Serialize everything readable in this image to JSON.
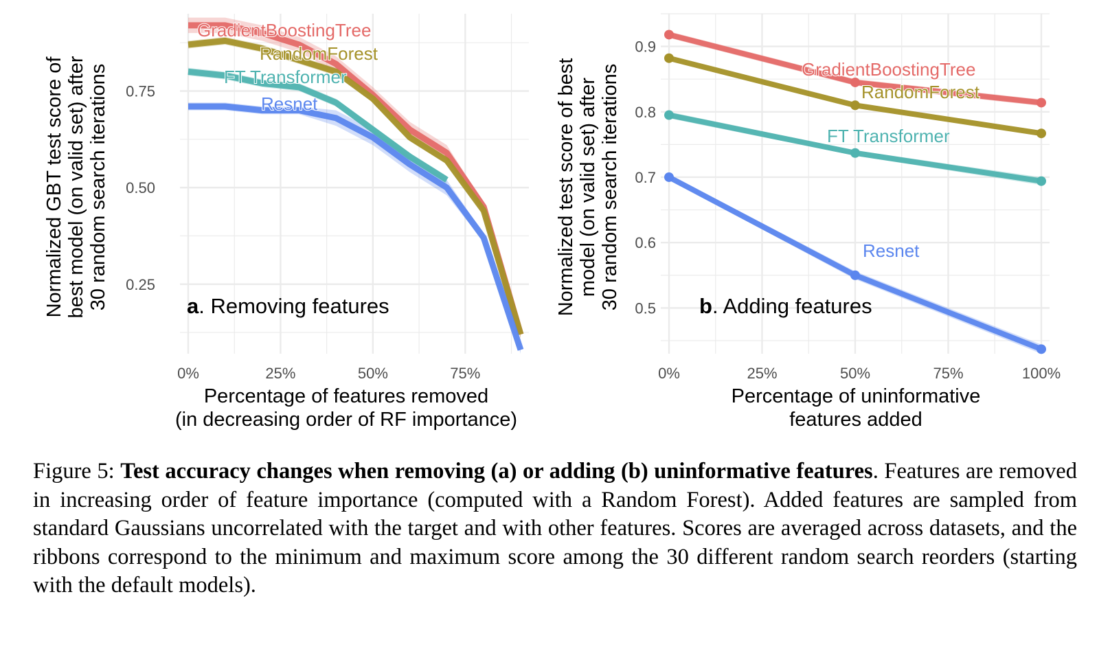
{
  "colors": {
    "GradientBoostingTree": "#E46A68",
    "RandomForest": "#A5922A",
    "FT Transformer": "#4FB3B0",
    "Resnet": "#5B86EE",
    "grid": "#EBEBEB"
  },
  "chart_data": [
    {
      "type": "line",
      "panel_letter": "a",
      "panel_title": "Removing features",
      "xlabel": [
        "Percentage of features removed",
        "(in decreasing order of RF importance)"
      ],
      "ylabel": [
        "Normalized GBT test score of",
        "best model (on valid set) after",
        "30 random search iterations"
      ],
      "xlim": [
        0,
        0.9
      ],
      "ylim": [
        0.07,
        0.95
      ],
      "x_ticks": [
        0,
        0.25,
        0.5,
        0.75
      ],
      "x_tick_labels": [
        "0%",
        "25%",
        "50%",
        "75%"
      ],
      "y_ticks": [
        0.25,
        0.5,
        0.75
      ],
      "y_tick_labels": [
        "0.25",
        "0.50",
        "0.75"
      ],
      "grid": true,
      "legend": "inline labels",
      "series": [
        {
          "name": "GradientBoostingTree",
          "x": [
            0,
            0.1,
            0.2,
            0.3,
            0.4,
            0.5,
            0.6,
            0.7,
            0.8,
            0.9
          ],
          "y": [
            0.92,
            0.92,
            0.9,
            0.87,
            0.82,
            0.74,
            0.65,
            0.59,
            0.45,
            0.12
          ],
          "lo": [
            0.9,
            0.9,
            0.88,
            0.85,
            0.8,
            0.72,
            0.63,
            0.57,
            0.43,
            0.11
          ],
          "hi": [
            0.94,
            0.94,
            0.92,
            0.89,
            0.84,
            0.76,
            0.67,
            0.61,
            0.46,
            0.13
          ]
        },
        {
          "name": "RandomForest",
          "x": [
            0,
            0.1,
            0.2,
            0.3,
            0.4,
            0.5,
            0.6,
            0.7,
            0.8,
            0.9
          ],
          "y": [
            0.87,
            0.88,
            0.86,
            0.83,
            0.8,
            0.73,
            0.63,
            0.57,
            0.44,
            0.12
          ],
          "lo": [
            0.86,
            0.87,
            0.85,
            0.82,
            0.79,
            0.72,
            0.62,
            0.56,
            0.43,
            0.11
          ],
          "hi": [
            0.88,
            0.89,
            0.87,
            0.84,
            0.81,
            0.74,
            0.64,
            0.58,
            0.45,
            0.13
          ]
        },
        {
          "name": "FT Transformer",
          "x": [
            0,
            0.1,
            0.2,
            0.3,
            0.4,
            0.5,
            0.6,
            0.7
          ],
          "y": [
            0.8,
            0.79,
            0.77,
            0.76,
            0.72,
            0.65,
            0.58,
            0.52
          ],
          "lo": [
            0.79,
            0.78,
            0.76,
            0.75,
            0.71,
            0.64,
            0.57,
            0.51
          ],
          "hi": [
            0.81,
            0.8,
            0.78,
            0.77,
            0.73,
            0.66,
            0.59,
            0.53
          ]
        },
        {
          "name": "Resnet",
          "x": [
            0,
            0.1,
            0.2,
            0.3,
            0.4,
            0.5,
            0.6,
            0.7,
            0.8,
            0.9
          ],
          "y": [
            0.71,
            0.71,
            0.7,
            0.7,
            0.68,
            0.63,
            0.56,
            0.5,
            0.37,
            0.08
          ],
          "lo": [
            0.7,
            0.7,
            0.69,
            0.69,
            0.66,
            0.61,
            0.54,
            0.48,
            0.36,
            0.07
          ],
          "hi": [
            0.72,
            0.72,
            0.71,
            0.71,
            0.7,
            0.65,
            0.58,
            0.52,
            0.38,
            0.09
          ]
        }
      ]
    },
    {
      "type": "line",
      "panel_letter": "b",
      "panel_title": "Adding features",
      "xlabel": [
        "Percentage of uninformative",
        "features added"
      ],
      "ylabel": [
        "Normalized test score of best",
        "model (on valid set) after",
        "30 random search iterations"
      ],
      "xlim": [
        0,
        1
      ],
      "ylim": [
        0.43,
        0.95
      ],
      "x_ticks": [
        0,
        0.25,
        0.5,
        0.75,
        1
      ],
      "x_tick_labels": [
        "0%",
        "25%",
        "50%",
        "75%",
        "100%"
      ],
      "y_ticks": [
        0.5,
        0.6,
        0.7,
        0.8,
        0.9
      ],
      "y_tick_labels": [
        "0.5",
        "0.6",
        "0.7",
        "0.8",
        "0.9"
      ],
      "grid": true,
      "legend": "inline labels",
      "series": [
        {
          "name": "GradientBoostingTree",
          "x": [
            0,
            0.5,
            1
          ],
          "y": [
            0.918,
            0.845,
            0.814
          ],
          "lo": [
            0.913,
            0.84,
            0.809
          ],
          "hi": [
            0.923,
            0.85,
            0.819
          ]
        },
        {
          "name": "RandomForest",
          "x": [
            0,
            0.5,
            1
          ],
          "y": [
            0.882,
            0.81,
            0.767
          ],
          "lo": [
            0.878,
            0.806,
            0.763
          ],
          "hi": [
            0.886,
            0.814,
            0.771
          ]
        },
        {
          "name": "FT Transformer",
          "x": [
            0,
            0.5,
            1
          ],
          "y": [
            0.795,
            0.737,
            0.694
          ],
          "lo": [
            0.79,
            0.733,
            0.688
          ],
          "hi": [
            0.8,
            0.741,
            0.7
          ]
        },
        {
          "name": "Resnet",
          "x": [
            0,
            0.5,
            1
          ],
          "y": [
            0.7,
            0.55,
            0.437
          ],
          "lo": [
            0.696,
            0.544,
            0.43
          ],
          "hi": [
            0.704,
            0.556,
            0.444
          ]
        }
      ]
    }
  ],
  "caption": {
    "prefix": "Figure 5: ",
    "bold": "Test accuracy changes when removing (a) or adding (b) uninformative features",
    "text": ". Features are removed in increasing order of feature importance (computed with a Random Forest). Added features are sampled from standard Gaussians uncorrelated with the target and with other features. Scores are averaged across datasets, and the ribbons correspond to the minimum and maximum score among the 30 different random search reorders (starting with the default models)."
  }
}
